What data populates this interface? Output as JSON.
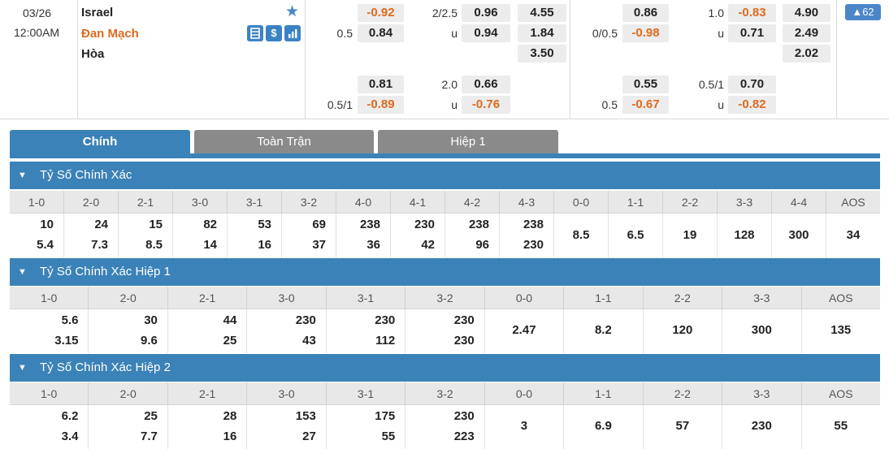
{
  "match": {
    "date": "03/26",
    "time": "12:00AM",
    "home": "Israel",
    "away": "Đan Mạch",
    "draw": "Hòa",
    "badge": "▲62",
    "icons": [
      "table-icon",
      "dollar-icon",
      "bar-chart-icon",
      "star-icon"
    ]
  },
  "odds": {
    "ft_handicap": {
      "home": "-0.92",
      "line_away": "0.5",
      "away": "0.84"
    },
    "ft_total": {
      "line": "2/2.5",
      "over": "0.96",
      "under_label": "u",
      "under": "0.94"
    },
    "ft_1x2": {
      "home": "4.55",
      "away": "1.84",
      "draw": "3.50"
    },
    "ht_handicap": {
      "home": "0.86",
      "line_away": "0/0.5",
      "away": "-0.98"
    },
    "ht_total": {
      "line": "1.0",
      "over": "-0.83",
      "under_label": "u",
      "under": "0.71"
    },
    "ht_1x2": {
      "home": "4.90",
      "away": "2.49",
      "draw": "2.02"
    },
    "ft_handicap_2": {
      "home": "0.81",
      "line_away": "0.5/1",
      "away": "-0.89"
    },
    "ft_total_2": {
      "line": "2.0",
      "over": "0.66",
      "under_label": "u",
      "under": "-0.76"
    },
    "ht_handicap_2": {
      "home": "0.55",
      "line_away": "0.5",
      "away": "-0.67"
    },
    "ht_total_2": {
      "line": "0.5/1",
      "over": "0.70",
      "under_label": "u",
      "under": "-0.82"
    }
  },
  "tabs": [
    "Chính",
    "Toàn Trận",
    "Hiệp 1"
  ],
  "sections": [
    {
      "title": "Tỷ Số Chính Xác",
      "headers": [
        "1-0",
        "2-0",
        "2-1",
        "3-0",
        "3-1",
        "3-2",
        "4-0",
        "4-1",
        "4-2",
        "4-3",
        "0-0",
        "1-1",
        "2-2",
        "3-3",
        "4-4",
        "AOS"
      ],
      "top": [
        "10",
        "24",
        "15",
        "82",
        "53",
        "69",
        "238",
        "230",
        "238",
        "238"
      ],
      "bottom": [
        "5.4",
        "7.3",
        "8.5",
        "14",
        "16",
        "37",
        "36",
        "42",
        "96",
        "230"
      ],
      "single": [
        "8.5",
        "6.5",
        "19",
        "128",
        "300",
        "34"
      ]
    },
    {
      "title": "Tỷ Số Chính Xác Hiệp 1",
      "headers": [
        "1-0",
        "2-0",
        "2-1",
        "3-0",
        "3-1",
        "3-2",
        "0-0",
        "1-1",
        "2-2",
        "3-3",
        "AOS"
      ],
      "top": [
        "5.6",
        "30",
        "44",
        "230",
        "230",
        "230"
      ],
      "bottom": [
        "3.15",
        "9.6",
        "25",
        "43",
        "112",
        "230"
      ],
      "single": [
        "2.47",
        "8.2",
        "120",
        "300",
        "135"
      ]
    },
    {
      "title": "Tỷ Số Chính Xác Hiệp 2",
      "headers": [
        "1-0",
        "2-0",
        "2-1",
        "3-0",
        "3-1",
        "3-2",
        "0-0",
        "1-1",
        "2-2",
        "3-3",
        "AOS"
      ],
      "top": [
        "6.2",
        "25",
        "28",
        "153",
        "175",
        "230"
      ],
      "bottom": [
        "3.4",
        "7.7",
        "16",
        "27",
        "55",
        "223"
      ],
      "single": [
        "3",
        "6.9",
        "57",
        "230",
        "55"
      ]
    }
  ]
}
